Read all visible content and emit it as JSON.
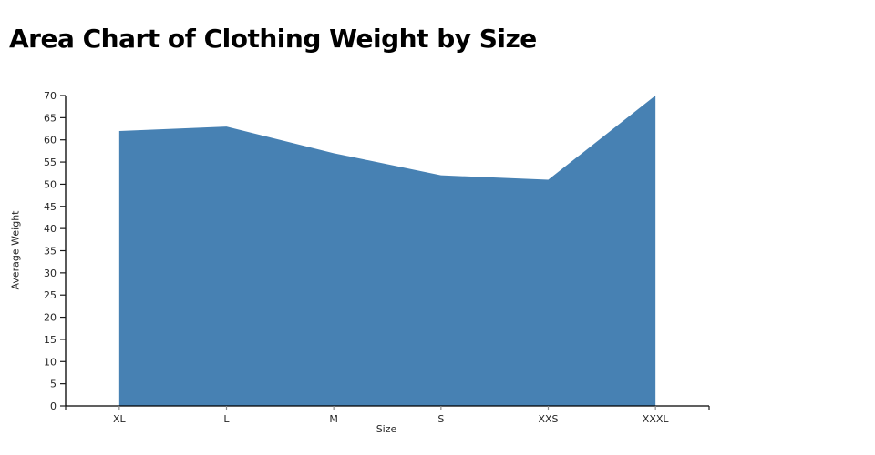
{
  "chart_data": {
    "type": "area",
    "title": "Area Chart of Clothing Weight by Size",
    "xlabel": "Size",
    "ylabel": "Average Weight",
    "categories": [
      "XL",
      "L",
      "M",
      "S",
      "XXS",
      "XXXL"
    ],
    "values": [
      62,
      63,
      57,
      52,
      51,
      70
    ],
    "ylim": [
      0,
      70
    ],
    "ytick_step": 5,
    "yticks": [
      0,
      5,
      10,
      15,
      20,
      25,
      30,
      35,
      40,
      45,
      50,
      55,
      60,
      65,
      70
    ],
    "grid": false,
    "legend": false,
    "colors": {
      "area_fill": "#4781b3",
      "axis_line": "#000000",
      "tick_mark": "#1a1a1a",
      "tick_label": "#262626",
      "title_text": "#000000",
      "background": "#ffffff"
    }
  }
}
